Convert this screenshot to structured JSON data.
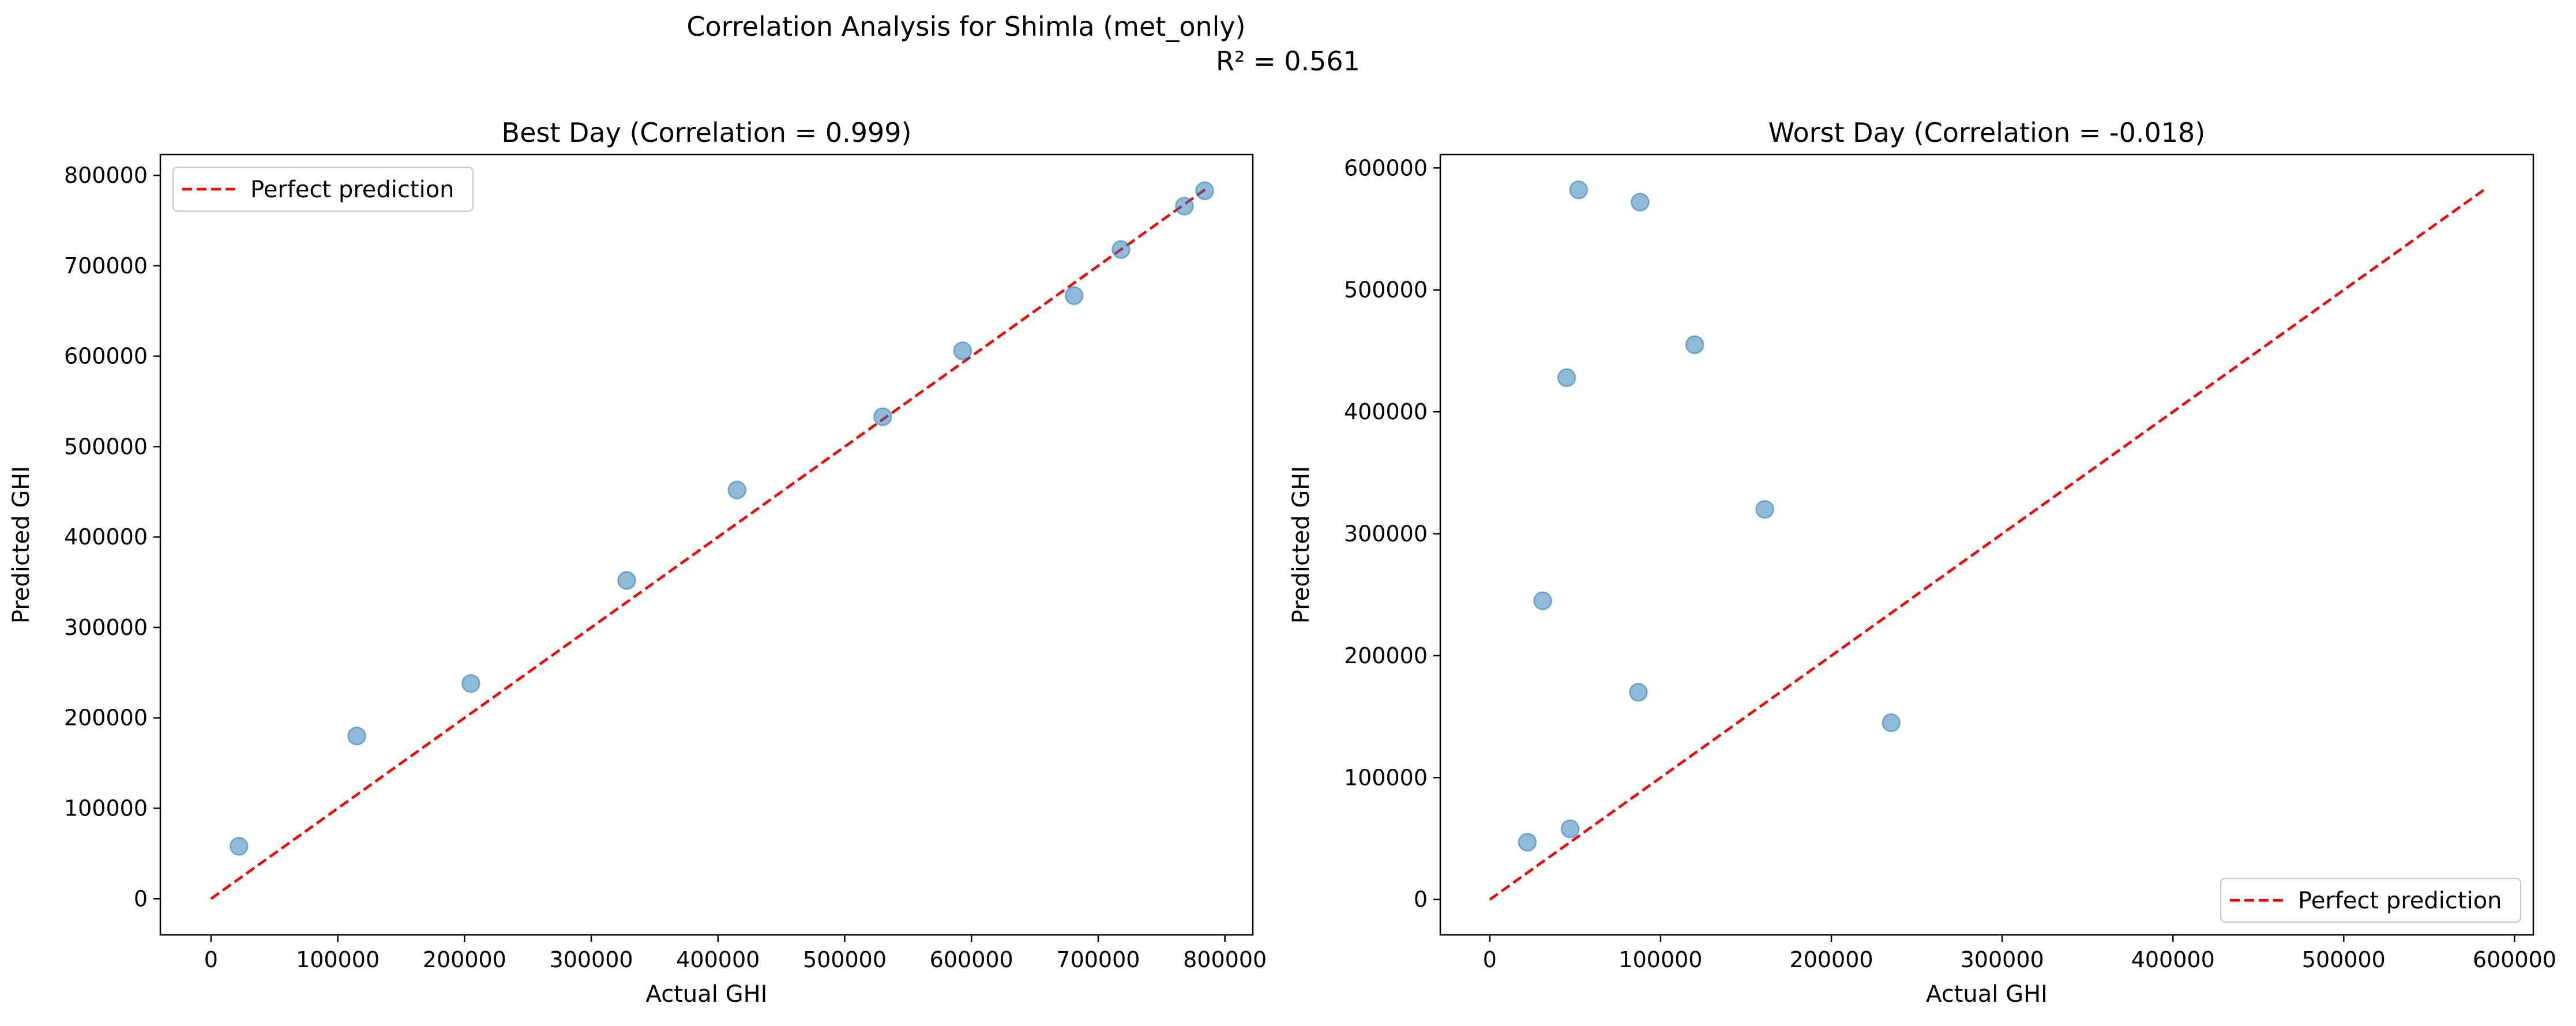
{
  "figure": {
    "suptitle_line1": "Correlation Analysis for Shimla (met_only)",
    "suptitle_line2": "R² = 0.561"
  },
  "colors": {
    "points": "#1f77b4",
    "reference_line": "#ff0000"
  },
  "chart_data": [
    {
      "type": "scatter",
      "title": "Best Day (Correlation = 0.999)",
      "xlabel": "Actual GHI",
      "ylabel": "Predicted GHI",
      "xlim": [
        -40000,
        822000
      ],
      "ylim": [
        -40000,
        823000
      ],
      "xticks": [
        0,
        100000,
        200000,
        300000,
        400000,
        500000,
        600000,
        700000,
        800000
      ],
      "yticks": [
        0,
        100000,
        200000,
        300000,
        400000,
        500000,
        600000,
        700000,
        800000
      ],
      "grid": false,
      "legend": {
        "location": "upper-left",
        "entries": [
          "Perfect prediction"
        ]
      },
      "reference_line": {
        "label": "Perfect prediction",
        "x": [
          0,
          785000
        ],
        "y": [
          0,
          785000
        ]
      },
      "points": {
        "x": [
          22000,
          115000,
          205000,
          328000,
          415000,
          530000,
          593000,
          681000,
          718000,
          768000,
          784000
        ],
        "y": [
          58000,
          180000,
          238000,
          352000,
          452000,
          533000,
          606000,
          667000,
          718000,
          766000,
          783000
        ]
      }
    },
    {
      "type": "scatter",
      "title": "Worst Day (Correlation = -0.018)",
      "xlabel": "Actual GHI",
      "ylabel": "Predicted GHI",
      "xlim": [
        -29000,
        611000
      ],
      "ylim": [
        -29000,
        611000
      ],
      "xticks": [
        0,
        100000,
        200000,
        300000,
        400000,
        500000,
        600000
      ],
      "yticks": [
        0,
        100000,
        200000,
        300000,
        400000,
        500000,
        600000
      ],
      "grid": false,
      "legend": {
        "location": "lower-right",
        "entries": [
          "Perfect prediction"
        ]
      },
      "reference_line": {
        "label": "Perfect prediction",
        "x": [
          0,
          582000
        ],
        "y": [
          0,
          582000
        ]
      },
      "points": {
        "x": [
          52000,
          88000,
          120000,
          45000,
          161000,
          31000,
          87000,
          235000,
          47000,
          22000
        ],
        "y": [
          582000,
          572000,
          455000,
          428000,
          320000,
          245000,
          170000,
          145000,
          58000,
          47000
        ]
      }
    }
  ]
}
